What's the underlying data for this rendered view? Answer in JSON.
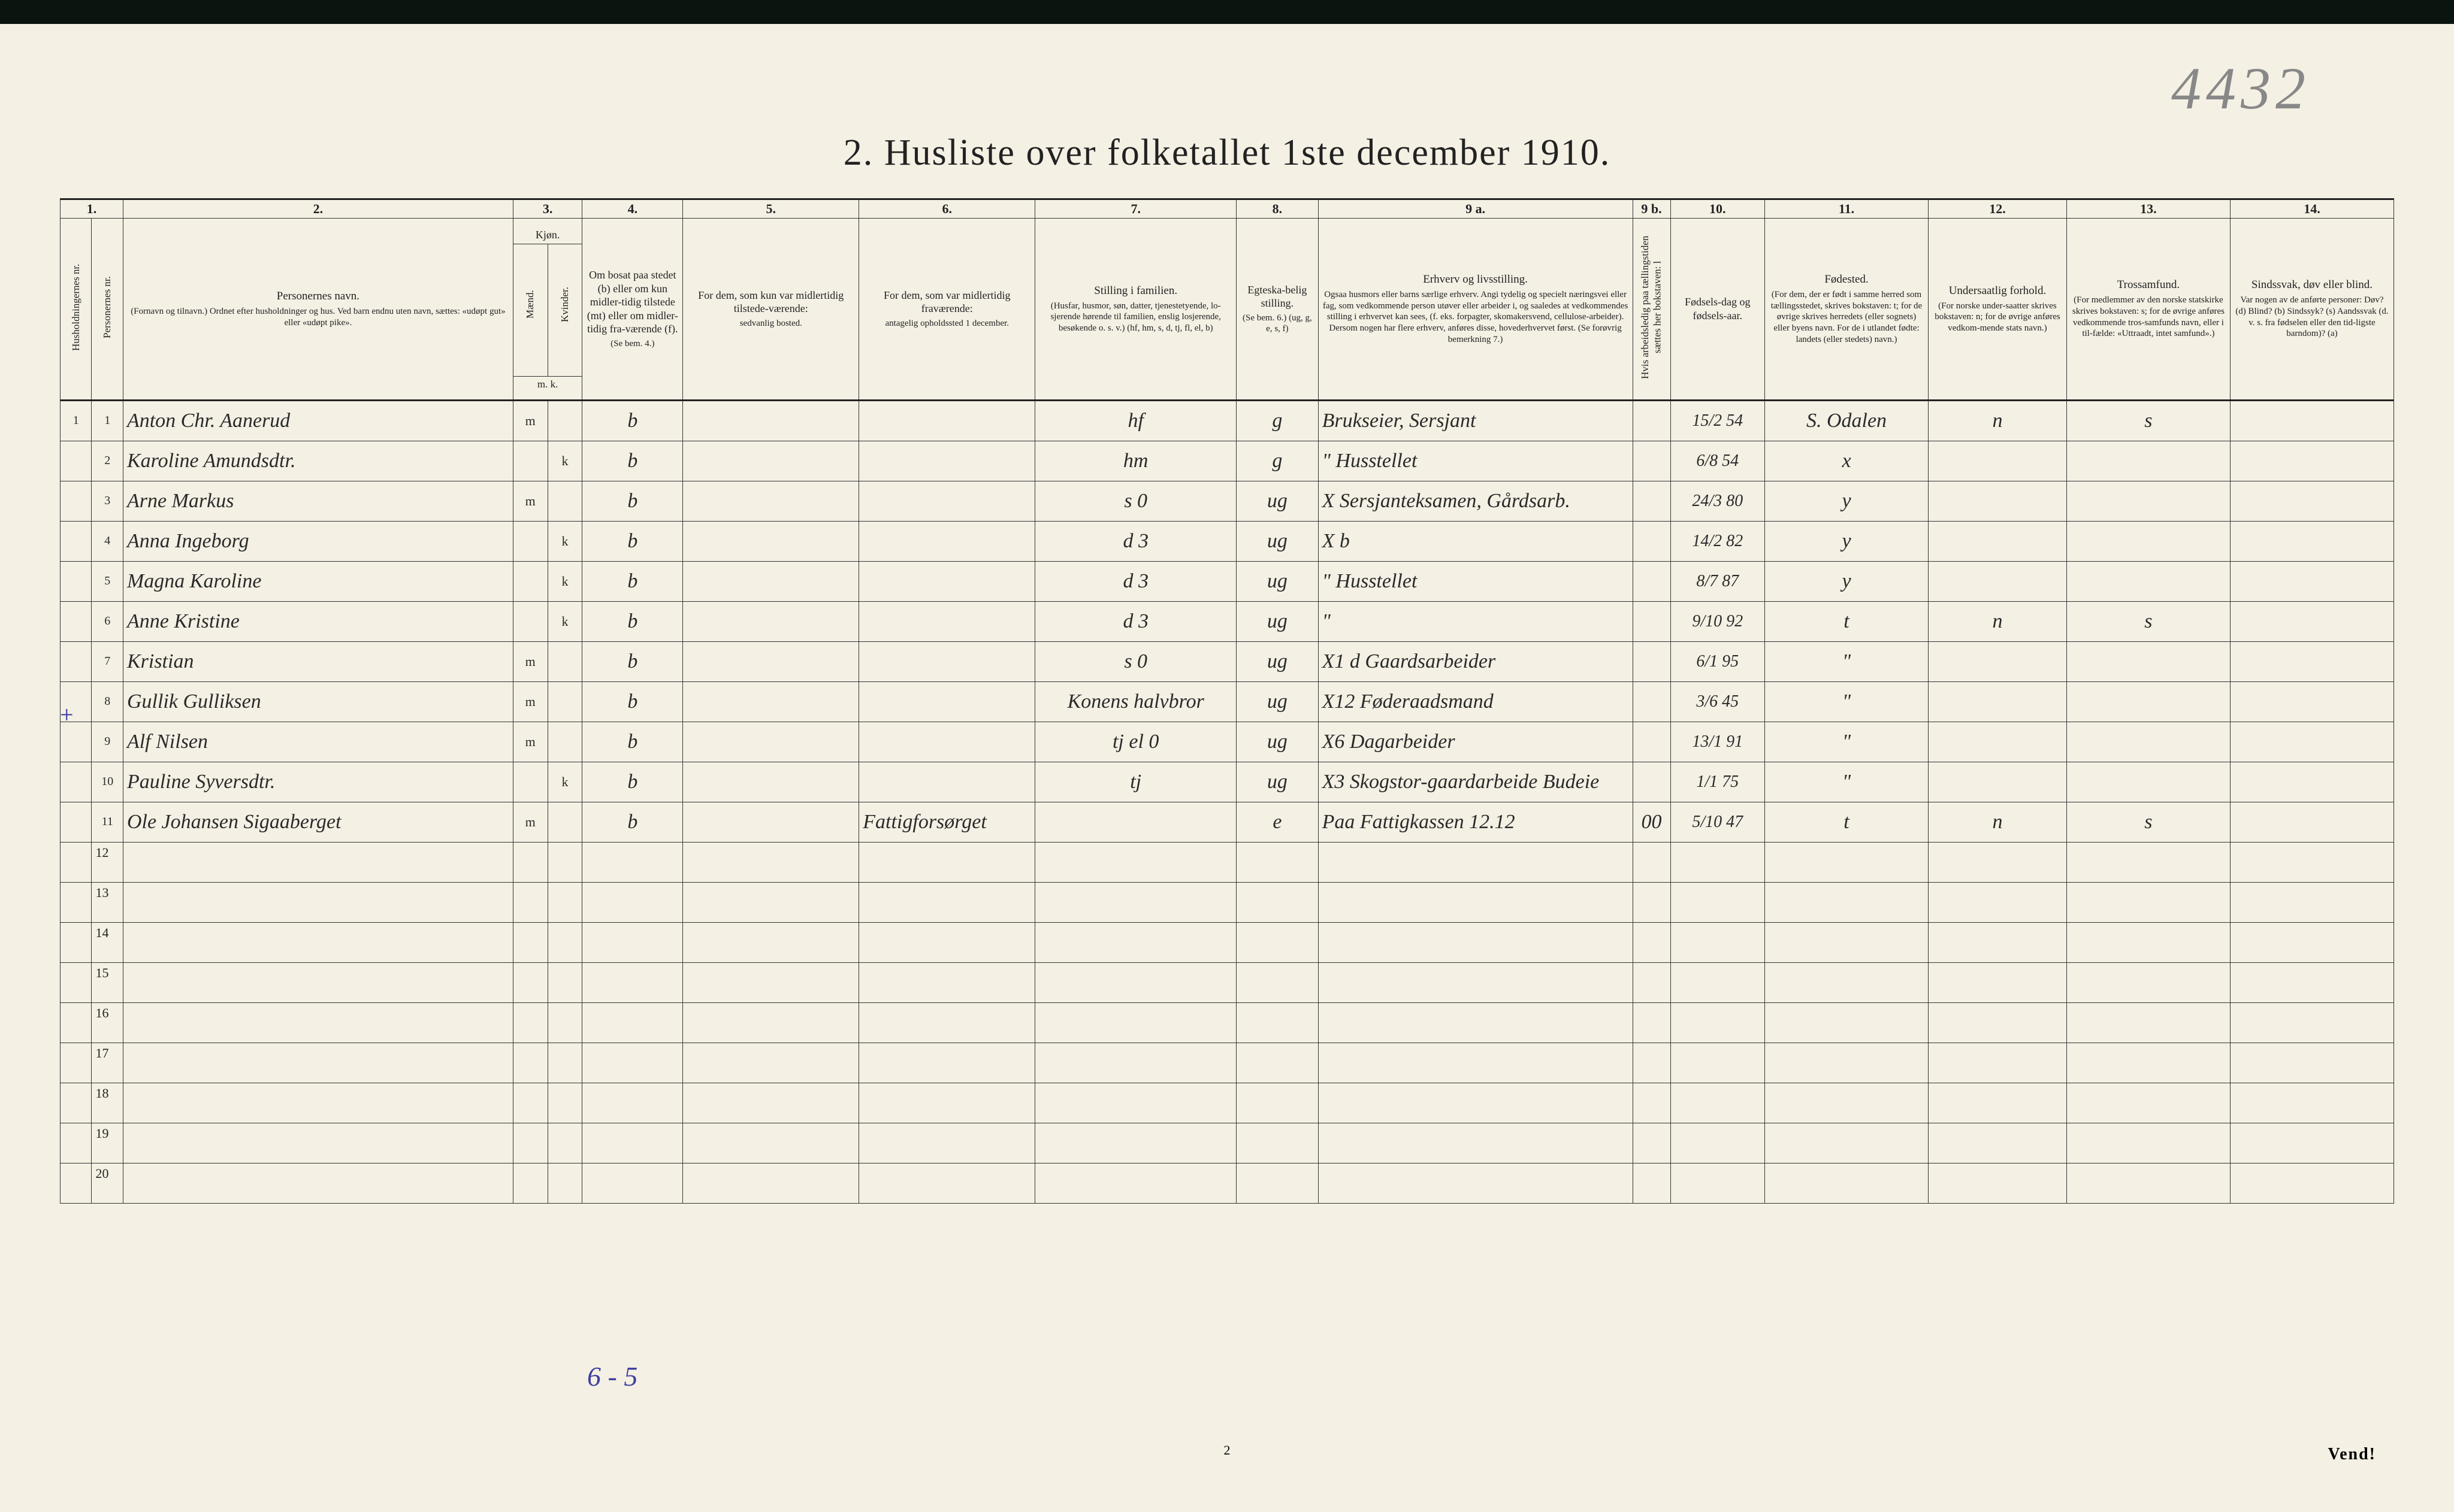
{
  "pencil_annotation": "4432",
  "title": "2.  Husliste over folketallet 1ste december 1910.",
  "page_number": "2",
  "footer_right": "Vend!",
  "tally_note": "6 - 5",
  "plus_mark": "+",
  "column_numbers": [
    "1.",
    "2.",
    "3.",
    "4.",
    "5.",
    "6.",
    "7.",
    "8.",
    "9 a.",
    "9 b.",
    "10.",
    "11.",
    "12.",
    "13.",
    "14."
  ],
  "headers": {
    "c1a": "Husholdningernes nr.",
    "c1b": "Personernes nr.",
    "c2_main": "Personernes navn.",
    "c2_sub": "(Fornavn og tilnavn.)\nOrdnet efter husholdninger og hus.\nVed barn endnu uten navn, sættes: «udøpt gut» eller «udøpt pike».",
    "c3_main": "Kjøn.",
    "c3_m": "Mænd.",
    "c3_k": "Kvinder.",
    "c3_mk": "m.  k.",
    "c4_main": "Om bosat paa stedet (b) eller om kun midler-tidig tilstede (mt) eller om midler-tidig fra-værende (f).",
    "c4_sub": "(Se bem. 4.)",
    "c5_main": "For dem, som kun var midlertidig tilstede-værende:",
    "c5_sub": "sedvanlig bosted.",
    "c6_main": "For dem, som var midlertidig fraværende:",
    "c6_sub": "antagelig opholdssted 1 december.",
    "c7_main": "Stilling i familien.",
    "c7_sub": "(Husfar, husmor, søn, datter, tjenestetyende, lo-sjerende hørende til familien, enslig losjerende, besøkende o. s. v.)\n(hf, hm, s, d, tj, fl, el, b)",
    "c8_main": "Egteska-belig stilling.",
    "c8_sub": "(Se bem. 6.)\n(ug, g, e, s, f)",
    "c9a_main": "Erhverv og livsstilling.",
    "c9a_sub": "Ogsaa husmors eller barns særlige erhverv.\nAngi tydelig og specielt næringsvei eller fag, som vedkommende person utøver eller arbeider i, og saaledes at vedkommendes stilling i erhvervet kan sees, (f. eks. forpagter, skomakersvend, cellulose-arbeider). Dersom nogen har flere erhverv, anføres disse, hovederhvervet først.\n(Se forøvrig bemerkning 7.)",
    "c9b": "Hvis arbeidsledig paa tællingstiden sættes her bokstaven: l",
    "c10_main": "Fødsels-dag og fødsels-aar.",
    "c11_main": "Fødested.",
    "c11_sub": "(For dem, der er født i samme herred som tællingsstedet, skrives bokstaven: t; for de øvrige skrives herredets (eller sognets) eller byens navn. For de i utlandet fødte: landets (eller stedets) navn.)",
    "c12_main": "Undersaatlig forhold.",
    "c12_sub": "(For norske under-saatter skrives bokstaven: n; for de øvrige anføres vedkom-mende stats navn.)",
    "c13_main": "Trossamfund.",
    "c13_sub": "(For medlemmer av den norske statskirke skrives bokstaven: s; for de øvrige anføres vedkommende tros-samfunds navn, eller i til-fælde: «Uttraadt, intet samfund».)",
    "c14_main": "Sindssvak, døv eller blind.",
    "c14_sub": "Var nogen av de anførte personer:\nDøv? (d)\nBlind? (b)\nSindssyk? (s)\nAandssvak (d. v. s. fra fødselen eller den tid-ligste barndom)? (a)"
  },
  "rows": [
    {
      "h": "1",
      "p": "1",
      "name": "Anton Chr. Aanerud",
      "m": "m",
      "k": "",
      "b": "b",
      "c5": "",
      "c6": "",
      "c7": "hf",
      "c8": "g",
      "c9": "Brukseier, Sersjant",
      "c9b": "",
      "c10": "15/2 54",
      "c11": "S. Odalen",
      "c12": "n",
      "c13": "s",
      "c14": ""
    },
    {
      "h": "",
      "p": "2",
      "name": "Karoline Amundsdtr.",
      "m": "",
      "k": "k",
      "b": "b",
      "c5": "",
      "c6": "",
      "c7": "hm",
      "c8": "g",
      "c9": "\" Husstellet",
      "c9b": "",
      "c10": "6/8 54",
      "c11": "x",
      "c12": "",
      "c13": "",
      "c14": ""
    },
    {
      "h": "",
      "p": "3",
      "name": "Arne Markus",
      "m": "m",
      "k": "",
      "b": "b",
      "c5": "",
      "c6": "",
      "c7": "s     0",
      "c8": "ug",
      "c9": "X Sersjanteksamen, Gårdsarb.",
      "c9b": "",
      "c10": "24/3 80",
      "c11": "y",
      "c12": "",
      "c13": "",
      "c14": ""
    },
    {
      "h": "",
      "p": "4",
      "name": "Anna Ingeborg",
      "m": "",
      "k": "k",
      "b": "b",
      "c5": "",
      "c6": "",
      "c7": "d     3",
      "c8": "ug",
      "c9": "X b",
      "c9b": "",
      "c10": "14/2 82",
      "c11": "y",
      "c12": "",
      "c13": "",
      "c14": ""
    },
    {
      "h": "",
      "p": "5",
      "name": "Magna Karoline",
      "m": "",
      "k": "k",
      "b": "b",
      "c5": "",
      "c6": "",
      "c7": "d     3",
      "c8": "ug",
      "c9": "\" Husstellet",
      "c9b": "",
      "c10": "8/7 87",
      "c11": "y",
      "c12": "",
      "c13": "",
      "c14": ""
    },
    {
      "h": "",
      "p": "6",
      "name": "Anne Kristine",
      "m": "",
      "k": "k",
      "b": "b",
      "c5": "",
      "c6": "",
      "c7": "d     3",
      "c8": "ug",
      "c9": "\"",
      "c9b": "",
      "c10": "9/10 92",
      "c11": "t",
      "c12": "n",
      "c13": "s",
      "c14": ""
    },
    {
      "h": "",
      "p": "7",
      "name": "Kristian",
      "m": "m",
      "k": "",
      "b": "b",
      "c5": "",
      "c6": "",
      "c7": "s     0",
      "c8": "ug",
      "c9": "X1 d  Gaardsarbeider",
      "c9b": "",
      "c10": "6/1 95",
      "c11": "\"",
      "c12": "",
      "c13": "",
      "c14": ""
    },
    {
      "h": "",
      "p": "8",
      "name": "Gullik Gulliksen",
      "m": "m",
      "k": "",
      "b": "b",
      "c5": "",
      "c6": "",
      "c7": "Konens halvbror",
      "c8": "ug",
      "c9": "X12 Føderaadsmand",
      "c9b": "",
      "c10": "3/6 45",
      "c11": "\"",
      "c12": "",
      "c13": "",
      "c14": ""
    },
    {
      "h": "",
      "p": "9",
      "name": "Alf Nilsen",
      "m": "m",
      "k": "",
      "b": "b",
      "c5": "",
      "c6": "",
      "c7": "tj el  0",
      "c8": "ug",
      "c9": "X6  Dagarbeider",
      "c9b": "",
      "c10": "13/1 91",
      "c11": "\"",
      "c12": "",
      "c13": "",
      "c14": ""
    },
    {
      "h": "",
      "p": "10",
      "name": "Pauline Syversdtr.",
      "m": "",
      "k": "k",
      "b": "b",
      "c5": "",
      "c6": "",
      "c7": "tj",
      "c8": "ug",
      "c9": "X3 Skogstor-gaardarbeide  Budeie",
      "c9b": "",
      "c10": "1/1 75",
      "c11": "\"",
      "c12": "",
      "c13": "",
      "c14": ""
    },
    {
      "h": "",
      "p": "11",
      "name": "Ole Johansen Sigaaberget",
      "m": "m",
      "k": "",
      "b": "b",
      "c5": "",
      "c6": "Fattigforsørget",
      "c7": "",
      "c8": "e",
      "c9": "Paa Fattigkassen 12.12",
      "c9b": "00",
      "c10": "5/10 47",
      "c11": "t",
      "c12": "n",
      "c13": "s",
      "c14": ""
    }
  ],
  "empty_rows": [
    "12",
    "13",
    "14",
    "15",
    "16",
    "17",
    "18",
    "19",
    "20"
  ],
  "colors": {
    "paper": "#f4f0e4",
    "ink": "#222222",
    "pencil": "#888888",
    "blue_ink": "#4040a0",
    "border": "#333333"
  }
}
